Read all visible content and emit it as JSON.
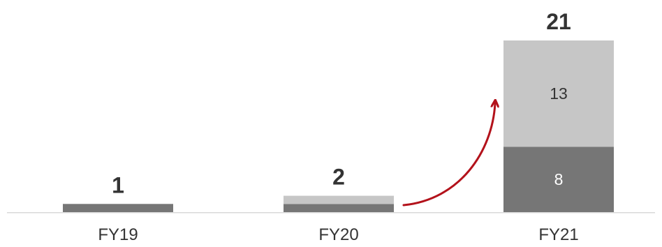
{
  "chart_data": {
    "type": "bar",
    "stacked": true,
    "categories": [
      "FY19",
      "FY20",
      "FY21"
    ],
    "series": [
      {
        "values": [
          1,
          1,
          8
        ],
        "color": "#767676"
      },
      {
        "values": [
          0,
          1,
          13
        ],
        "color": "#c6c6c6"
      }
    ],
    "totals": [
      1,
      2,
      21
    ],
    "segment_labels_shown": [
      false,
      true
    ],
    "segment_labels_on_category": "FY21",
    "segment_label_values": [
      "8",
      "13"
    ],
    "total_labels": [
      "1",
      "2",
      "21"
    ],
    "ylim": [
      0,
      21
    ],
    "grid": false,
    "legend": "none",
    "annotation": {
      "type": "curved-arrow",
      "from_category": "FY20",
      "to_category": "FY21",
      "color": "#b3121b"
    },
    "colors": {
      "axis": "#d9d9d9",
      "text": "#333333",
      "segment_label_dark": "#ffffff",
      "segment_label_light": "#333333"
    }
  }
}
